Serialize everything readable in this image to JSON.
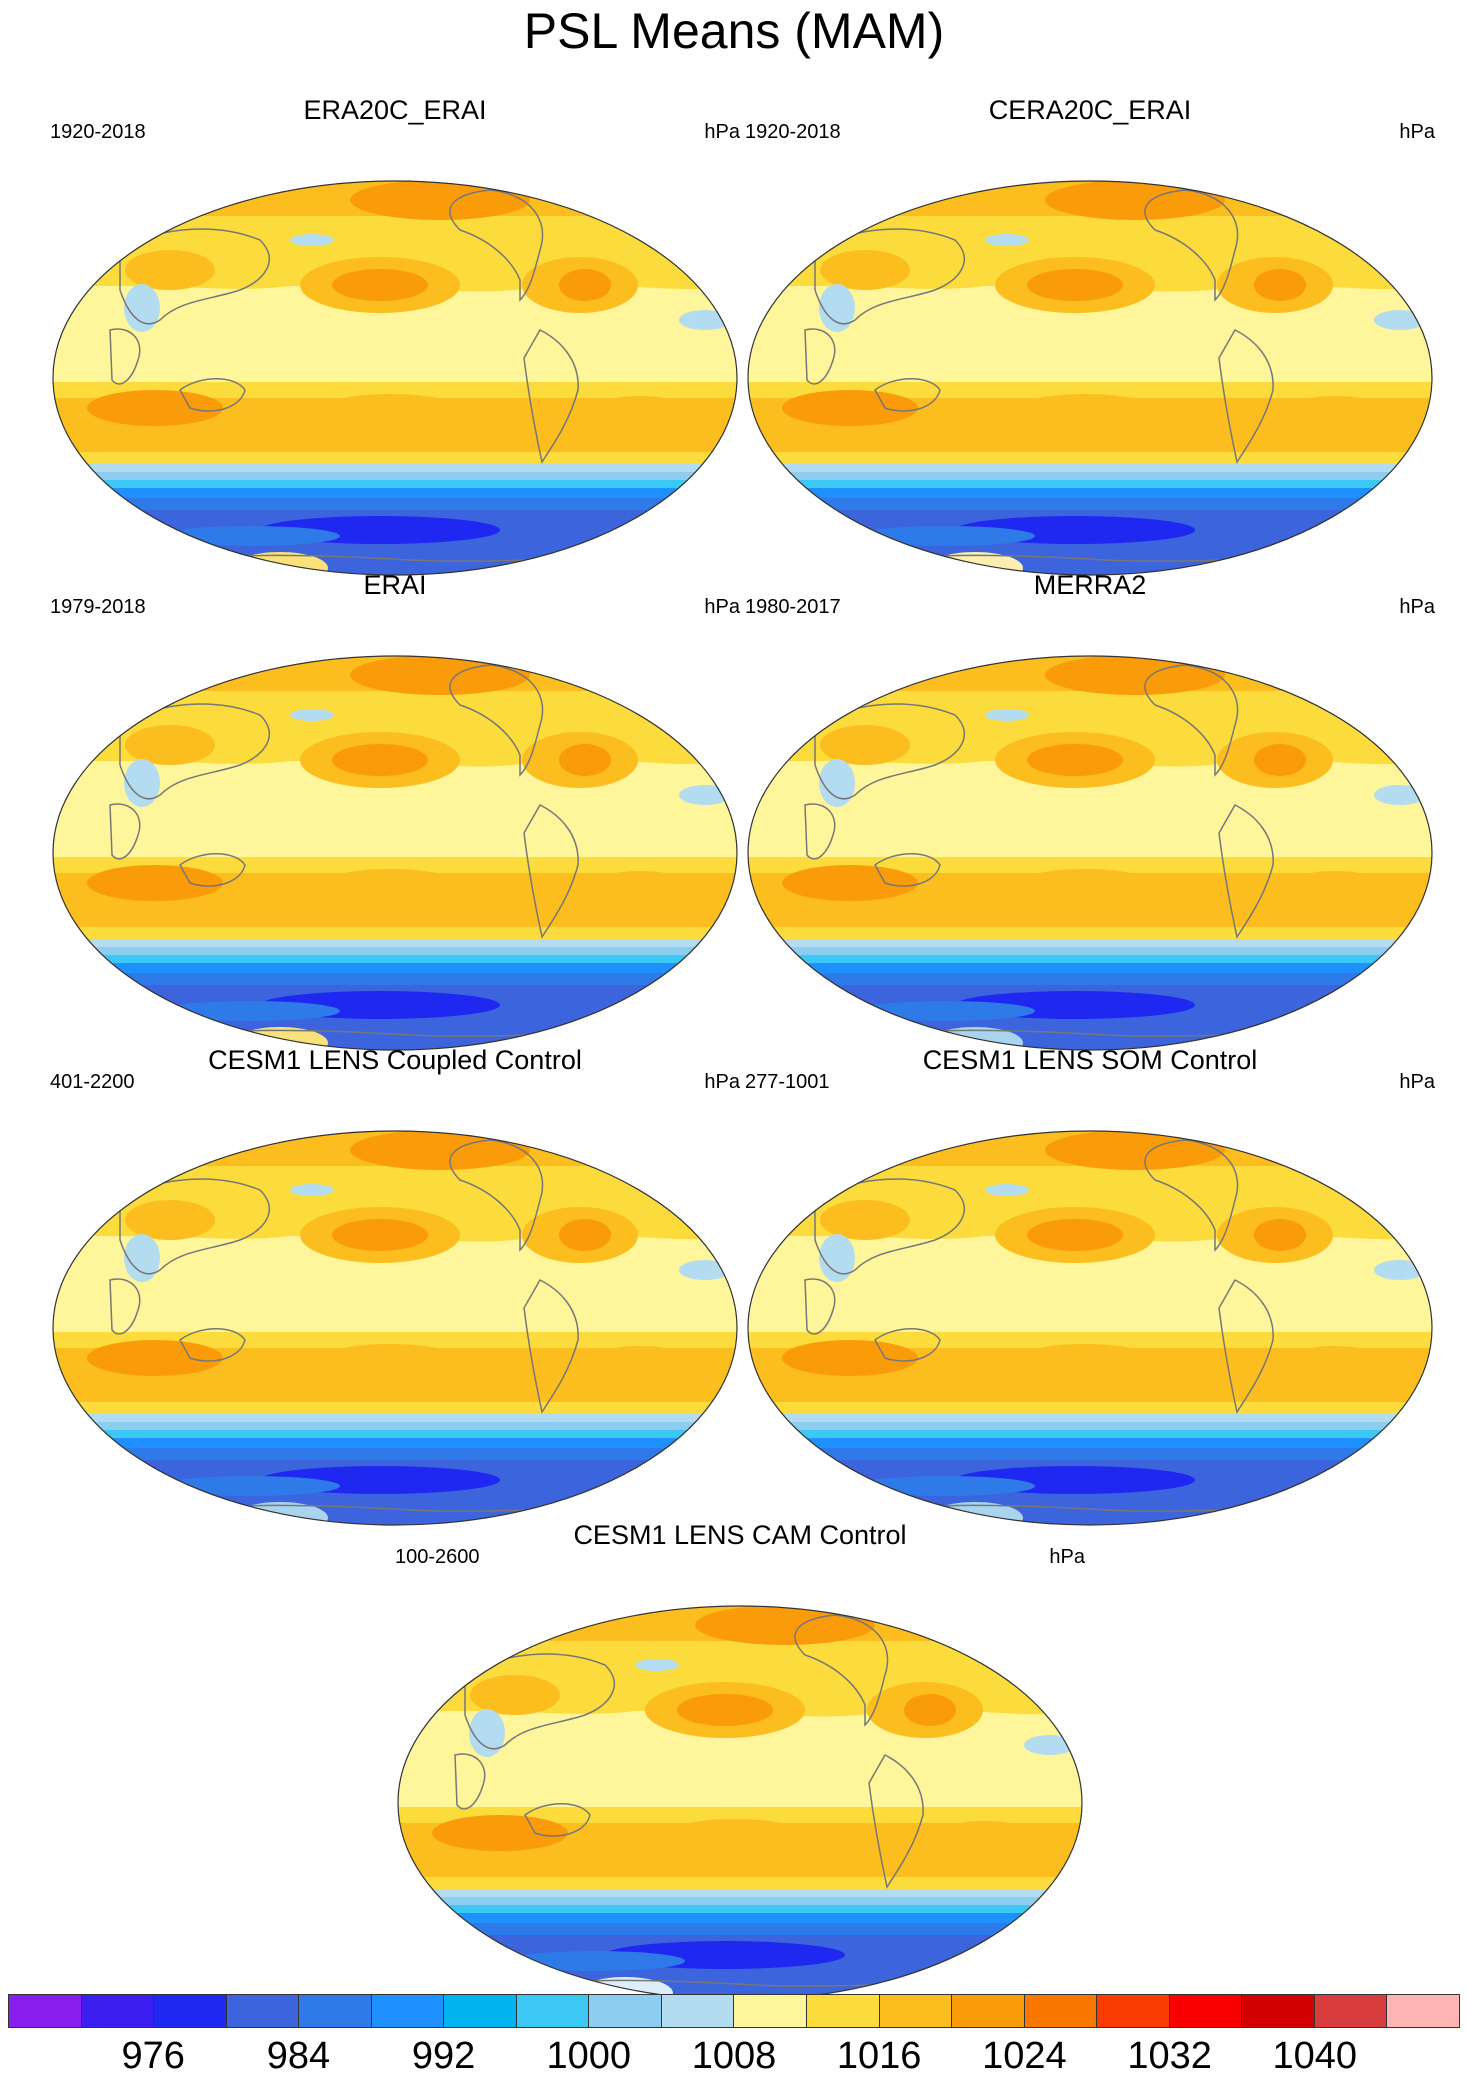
{
  "title": "PSL Means (MAM)",
  "panels": [
    {
      "title": "ERA20C_ERAI",
      "years": "1920-2018",
      "units": "hPa",
      "antarctic_highlight": "#f9e27a"
    },
    {
      "title": "CERA20C_ERAI",
      "years": "1920-2018",
      "units": "hPa",
      "antarctic_highlight": "#fbeeb0"
    },
    {
      "title": "ERAI",
      "years": "1979-2018",
      "units": "hPa",
      "antarctic_highlight": "#f9e27a"
    },
    {
      "title": "MERRA2",
      "years": "1980-2017",
      "units": "hPa",
      "antarctic_highlight": "#a8d4ee"
    },
    {
      "title": "CESM1 LENS Coupled Control",
      "years": "401-2200",
      "units": "hPa",
      "antarctic_highlight": "#a8d4ee"
    },
    {
      "title": "CESM1 LENS SOM Control",
      "years": "277-1001",
      "units": "hPa",
      "antarctic_highlight": "#a8d4ee"
    },
    {
      "title": "CESM1 LENS CAM Control",
      "years": "100-2600",
      "units": "hPa",
      "antarctic_highlight": "#dceefa"
    }
  ],
  "colorbar": {
    "colors": [
      "#8a1eee",
      "#3c1ef0",
      "#1e28f0",
      "#3c64dc",
      "#2e7ae8",
      "#1e90ff",
      "#00b4f0",
      "#3cc8f5",
      "#8ccdf0",
      "#b4dcf0",
      "#fff59a",
      "#fbdc3c",
      "#fbbe1e",
      "#fa9b0a",
      "#fa7800",
      "#fa3c00",
      "#fa0000",
      "#d20000",
      "#d83c3c",
      "#ffb4b4"
    ],
    "labels": [
      "976",
      "984",
      "992",
      "1000",
      "1008",
      "1016",
      "1024",
      "1032",
      "1040"
    ]
  }
}
